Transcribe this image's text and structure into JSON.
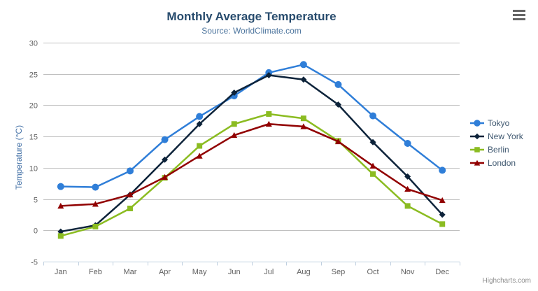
{
  "header": {
    "title": "Monthly Average Temperature",
    "subtitle": "Source: WorldClimate.com"
  },
  "credit_label": "Highcharts.com",
  "colors": {
    "title": "#274b6d",
    "subtitle": "#4d759e",
    "axis_title": "#4572a7",
    "axis_labels": "#606060",
    "grid_line": "#c0c0c0",
    "axis_line": "#c0d0e0",
    "legend_text": "#3e576f",
    "credit_text": "#909090",
    "menu_icon": "#666666"
  },
  "chart_data": {
    "type": "line",
    "title": "Monthly Average Temperature",
    "subtitle": "Source: WorldClimate.com",
    "xlabel": "",
    "ylabel": "Temperature (°C)",
    "categories": [
      "Jan",
      "Feb",
      "Mar",
      "Apr",
      "May",
      "Jun",
      "Jul",
      "Aug",
      "Sep",
      "Oct",
      "Nov",
      "Dec"
    ],
    "ylim": [
      -5,
      30
    ],
    "yticks": [
      -5,
      0,
      5,
      10,
      15,
      20,
      25,
      30
    ],
    "grid": true,
    "legend_position": "right",
    "series": [
      {
        "name": "Tokyo",
        "color": "#2f7ed8",
        "marker": "circle",
        "values": [
          7.0,
          6.9,
          9.5,
          14.5,
          18.2,
          21.5,
          25.2,
          26.5,
          23.3,
          18.3,
          13.9,
          9.6
        ]
      },
      {
        "name": "New York",
        "color": "#0d233a",
        "marker": "diamond",
        "values": [
          -0.2,
          0.8,
          5.7,
          11.3,
          17.0,
          22.0,
          24.8,
          24.1,
          20.1,
          14.1,
          8.6,
          2.5
        ]
      },
      {
        "name": "Berlin",
        "color": "#8bbc21",
        "marker": "square",
        "values": [
          -0.9,
          0.6,
          3.5,
          8.4,
          13.5,
          17.0,
          18.6,
          17.9,
          14.3,
          9.0,
          3.9,
          1.0
        ]
      },
      {
        "name": "London",
        "color": "#910000",
        "marker": "triangle",
        "values": [
          3.9,
          4.2,
          5.7,
          8.5,
          11.9,
          15.2,
          17.0,
          16.6,
          14.2,
          10.3,
          6.6,
          4.8
        ]
      }
    ]
  }
}
